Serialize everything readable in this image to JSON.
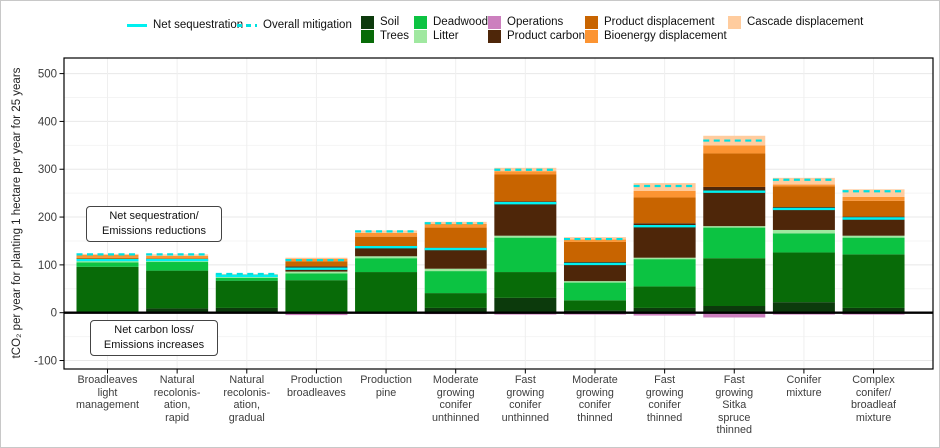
{
  "chart_data": {
    "type": "bar",
    "stacked": true,
    "title": "",
    "xlabel": "",
    "ylabel": "tCO₂ per year for planting 1 hectare per year for 25 years",
    "ylim": [
      -100,
      500
    ],
    "yticks": [
      -100,
      0,
      100,
      200,
      300,
      400,
      500
    ],
    "grid": "major and minor horizontal gridlines, vertical gridline at each category, light gray on white",
    "legend_position": "top",
    "categories": [
      "Broadleaves\nlight\nmanagement",
      "Natural\nrecolonis-\nation,\nrapid",
      "Natural\nrecolonis-\nation,\ngradual",
      "Production\nbroadleaves",
      "Production\npine",
      "Moderate\ngrowing\nconifer\nunthinned",
      "Fast\ngrowing\nconifer\nunthinned",
      "Moderate\ngrowing\nconifer\nthinned",
      "Fast\ngrowing\nconifer\nthinned",
      "Fast\ngrowing\nSitka\nspruce\nthinned",
      "Conifer\nmixture",
      "Complex\nconifer/\nbroadleaf\nmixture"
    ],
    "series": [
      {
        "name": "Soil",
        "color": "#0C3A0C",
        "values": [
          0,
          9,
          10,
          0,
          0,
          10,
          31,
          5,
          10,
          14,
          22,
          10
        ]
      },
      {
        "name": "Trees",
        "color": "#086B08",
        "values": [
          96,
          79,
          57,
          68,
          85,
          31,
          54,
          21,
          45,
          100,
          104,
          112
        ]
      },
      {
        "name": "Deadwood",
        "color": "#0CC342",
        "values": [
          9,
          18,
          6,
          14,
          29,
          46,
          72,
          37,
          57,
          64,
          40,
          35
        ]
      },
      {
        "name": "Litter",
        "color": "#A0E8A0",
        "values": [
          4,
          3,
          4,
          4,
          4,
          5,
          4,
          3,
          3,
          3,
          7,
          4
        ]
      },
      {
        "name": "Product carbon",
        "color": "#4E2609",
        "values": [
          2,
          1,
          0,
          11,
          21,
          44,
          72,
          40,
          72,
          82,
          48,
          40
        ]
      },
      {
        "name": "Product displacement",
        "color": "#C86400",
        "values": [
          4,
          4,
          0,
          10,
          20,
          42,
          56,
          42,
          54,
          70,
          43,
          33
        ]
      },
      {
        "name": "Bioenergy displacement",
        "color": "#FC9432",
        "values": [
          6,
          5,
          2,
          6,
          8,
          8,
          7,
          5,
          14,
          17,
          4,
          8
        ]
      },
      {
        "name": "Cascade displacement",
        "color": "#FFCC9E",
        "values": [
          2,
          3,
          2,
          2,
          5,
          4,
          7,
          5,
          16,
          20,
          14,
          16
        ]
      },
      {
        "name": "Operations",
        "color": "#CC7FBE",
        "values": [
          -1,
          0,
          0,
          -5,
          -2,
          -3,
          -4,
          -4,
          -6,
          -10,
          -4,
          -4
        ]
      }
    ],
    "lines": [
      {
        "name": "Net sequestration",
        "style": "solid",
        "color": "#00F0F0",
        "values": [
          110,
          110,
          77,
          92,
          137,
          133,
          229,
          102,
          181,
          253,
          217,
          197
        ]
      },
      {
        "name": "Overall mitigation",
        "style": "dashed",
        "color": "#00E0E0",
        "values": [
          122,
          122,
          81,
          110,
          170,
          187,
          299,
          154,
          265,
          360,
          278,
          254
        ]
      }
    ]
  },
  "legend": {
    "line_items": [
      {
        "label": "Net sequestration",
        "style": "solid"
      },
      {
        "label": "Overall mitigation",
        "style": "dashed"
      }
    ],
    "columns": [
      [
        "Soil",
        "Trees"
      ],
      [
        "Deadwood",
        "Litter"
      ],
      [
        "Operations",
        "Product carbon"
      ],
      [
        "Product displacement",
        "Bioenergy displacement"
      ],
      [
        "Cascade displacement"
      ]
    ]
  },
  "annotations": {
    "sequestration_box": {
      "line1": "Net sequestration/",
      "line2": "Emissions reductions"
    },
    "carbon_loss_box": {
      "line1": "Net carbon loss/",
      "line2": "Emissions increases"
    }
  }
}
